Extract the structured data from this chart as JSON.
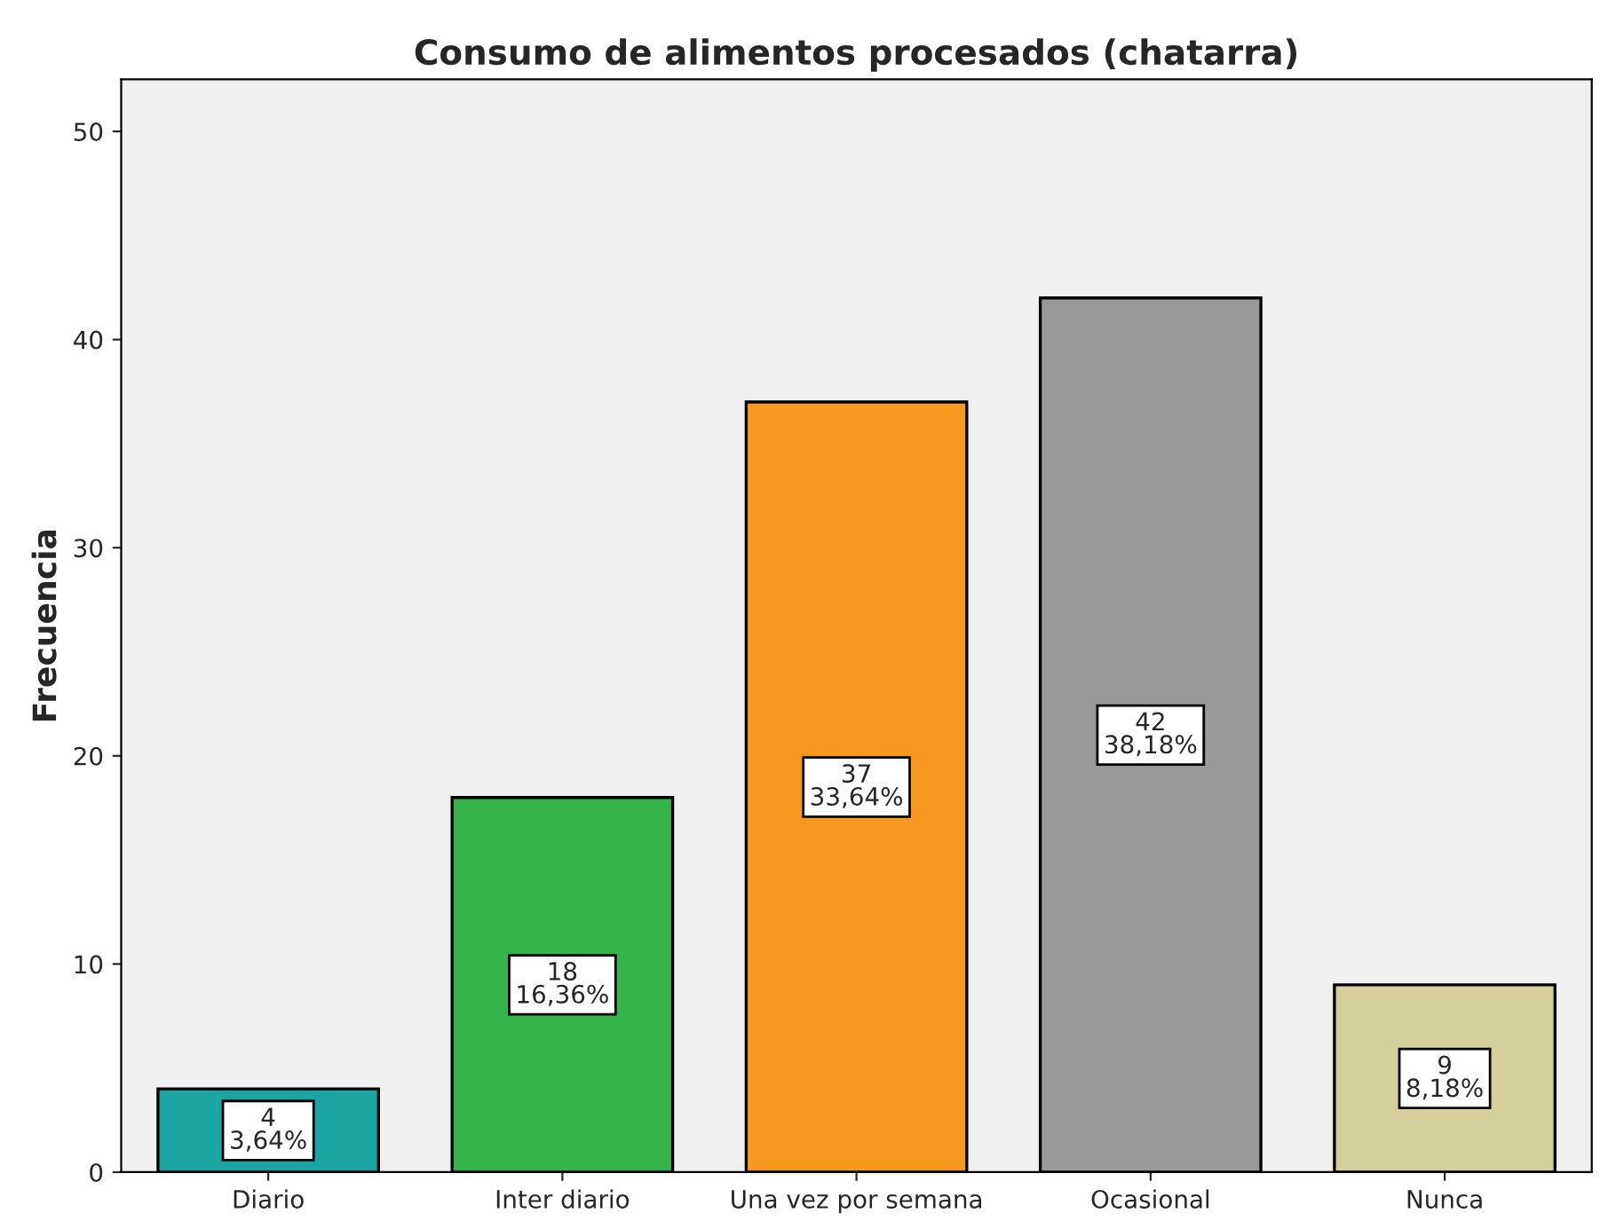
{
  "chart_data": {
    "type": "bar",
    "title": "Consumo de alimentos procesados (chatarra)",
    "ylabel": "Frecuencia",
    "categories": [
      "Diario",
      "Inter diario",
      "Una vez por semana",
      "Ocasional",
      "Nunca"
    ],
    "values": [
      4,
      18,
      37,
      42,
      9
    ],
    "colors": [
      "#1ba5a3",
      "#34b44a",
      "#f7991f",
      "#999999",
      "#d5cf9b"
    ],
    "value_labels": [
      "4\n3,64%",
      "18\n16,36%",
      "37\n33,64%",
      "42\n38,18%",
      "9\n8,18%"
    ],
    "ylim": [
      0,
      52.5
    ],
    "yticks": [
      0,
      10,
      20,
      30,
      40,
      50
    ],
    "grid": false,
    "legend": false
  }
}
